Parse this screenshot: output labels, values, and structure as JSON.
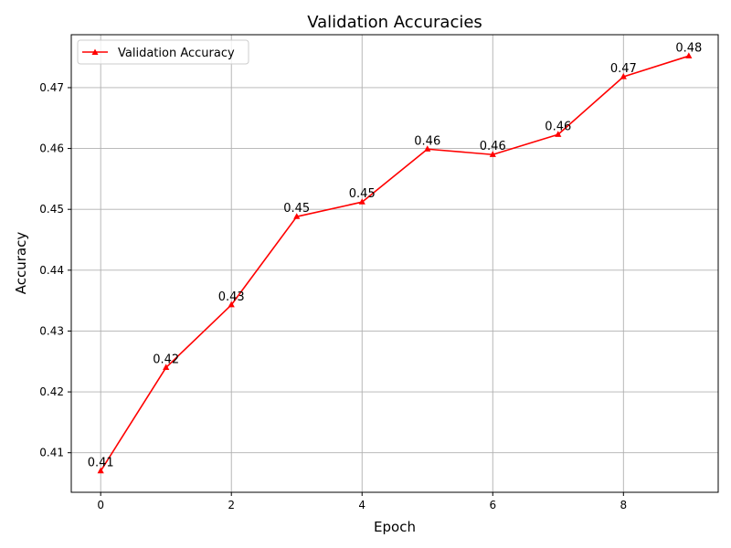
{
  "chart_data": {
    "type": "line",
    "title": "Validation Accuracies",
    "xlabel": "Epoch",
    "ylabel": "Accuracy",
    "x": [
      0,
      1,
      2,
      3,
      4,
      5,
      6,
      7,
      8,
      9
    ],
    "series": [
      {
        "name": "Validation Accuracy",
        "color": "#ff0000",
        "marker": "triangle-up",
        "values": [
          0.407,
          0.424,
          0.4343,
          0.4488,
          0.4512,
          0.4599,
          0.459,
          0.4623,
          0.4718,
          0.4752
        ],
        "data_labels": [
          "0.41",
          "0.42",
          "0.43",
          "0.45",
          "0.45",
          "0.46",
          "0.46",
          "0.46",
          "0.47",
          "0.48"
        ]
      }
    ],
    "xlim": [
      -0.45,
      9.45
    ],
    "ylim": [
      0.4035,
      0.4787
    ],
    "xticks": [
      0,
      2,
      4,
      6,
      8
    ],
    "xtick_labels": [
      "0",
      "2",
      "4",
      "6",
      "8"
    ],
    "yticks": [
      0.41,
      0.42,
      0.43,
      0.44,
      0.45,
      0.46,
      0.47
    ],
    "ytick_labels": [
      "0.41",
      "0.42",
      "0.43",
      "0.44",
      "0.45",
      "0.46",
      "0.47"
    ],
    "grid": true,
    "legend_position": "top-left"
  }
}
